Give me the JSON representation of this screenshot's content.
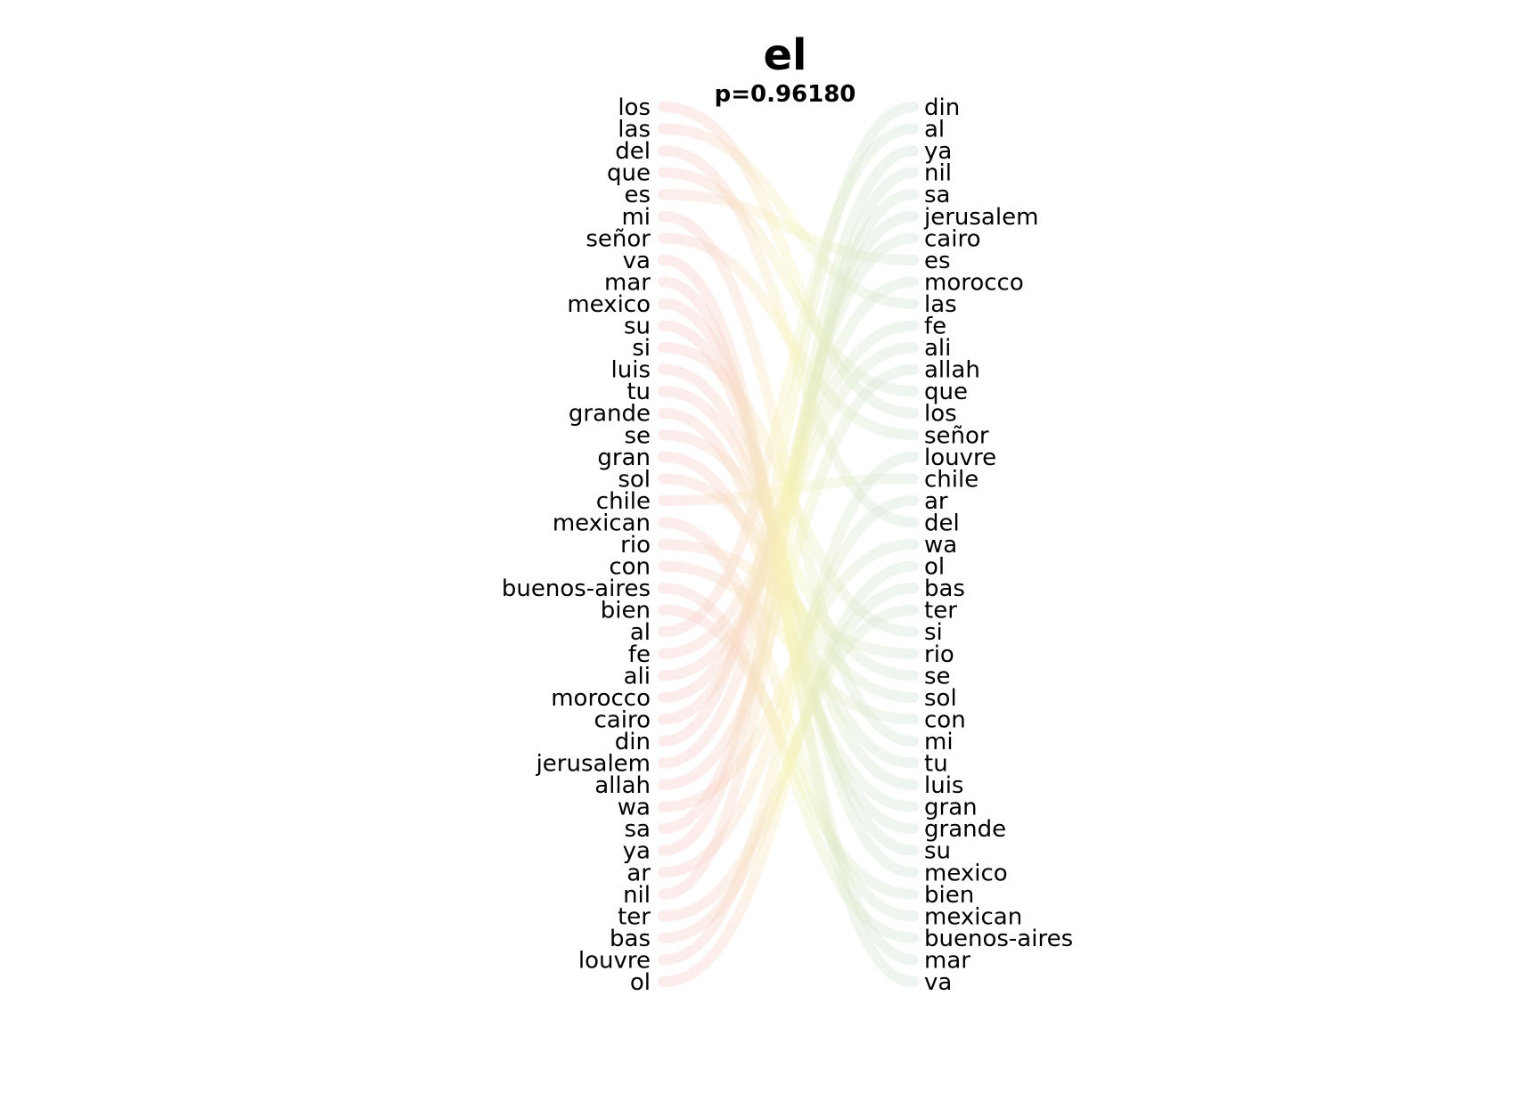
{
  "title": "el",
  "subtitle": "p=0.96180",
  "colors": {
    "left_curve": "#f8c8c8",
    "right_curve": "#cfe3d3",
    "mid_curve": "#f6f3b8",
    "text": "#000000"
  },
  "left_words": [
    "los",
    "las",
    "del",
    "que",
    "es",
    "mi",
    "señor",
    "va",
    "mar",
    "mexico",
    "su",
    "si",
    "luis",
    "tu",
    "grande",
    "se",
    "gran",
    "sol",
    "chile",
    "mexican",
    "rio",
    "con",
    "buenos-aires",
    "bien",
    "al",
    "fe",
    "ali",
    "morocco",
    "cairo",
    "din",
    "jerusalem",
    "allah",
    "wa",
    "sa",
    "ya",
    "ar",
    "nil",
    "ter",
    "bas",
    "louvre",
    "ol"
  ],
  "right_words": [
    "din",
    "al",
    "ya",
    "nil",
    "sa",
    "jerusalem",
    "cairo",
    "es",
    "morocco",
    "las",
    "fe",
    "ali",
    "allah",
    "que",
    "los",
    "señor",
    "louvre",
    "chile",
    "ar",
    "del",
    "wa",
    "ol",
    "bas",
    "ter",
    "si",
    "rio",
    "se",
    "sol",
    "con",
    "mi",
    "tu",
    "luis",
    "gran",
    "grande",
    "su",
    "mexico",
    "bien",
    "mexican",
    "buenos-aires",
    "mar",
    "va"
  ]
}
